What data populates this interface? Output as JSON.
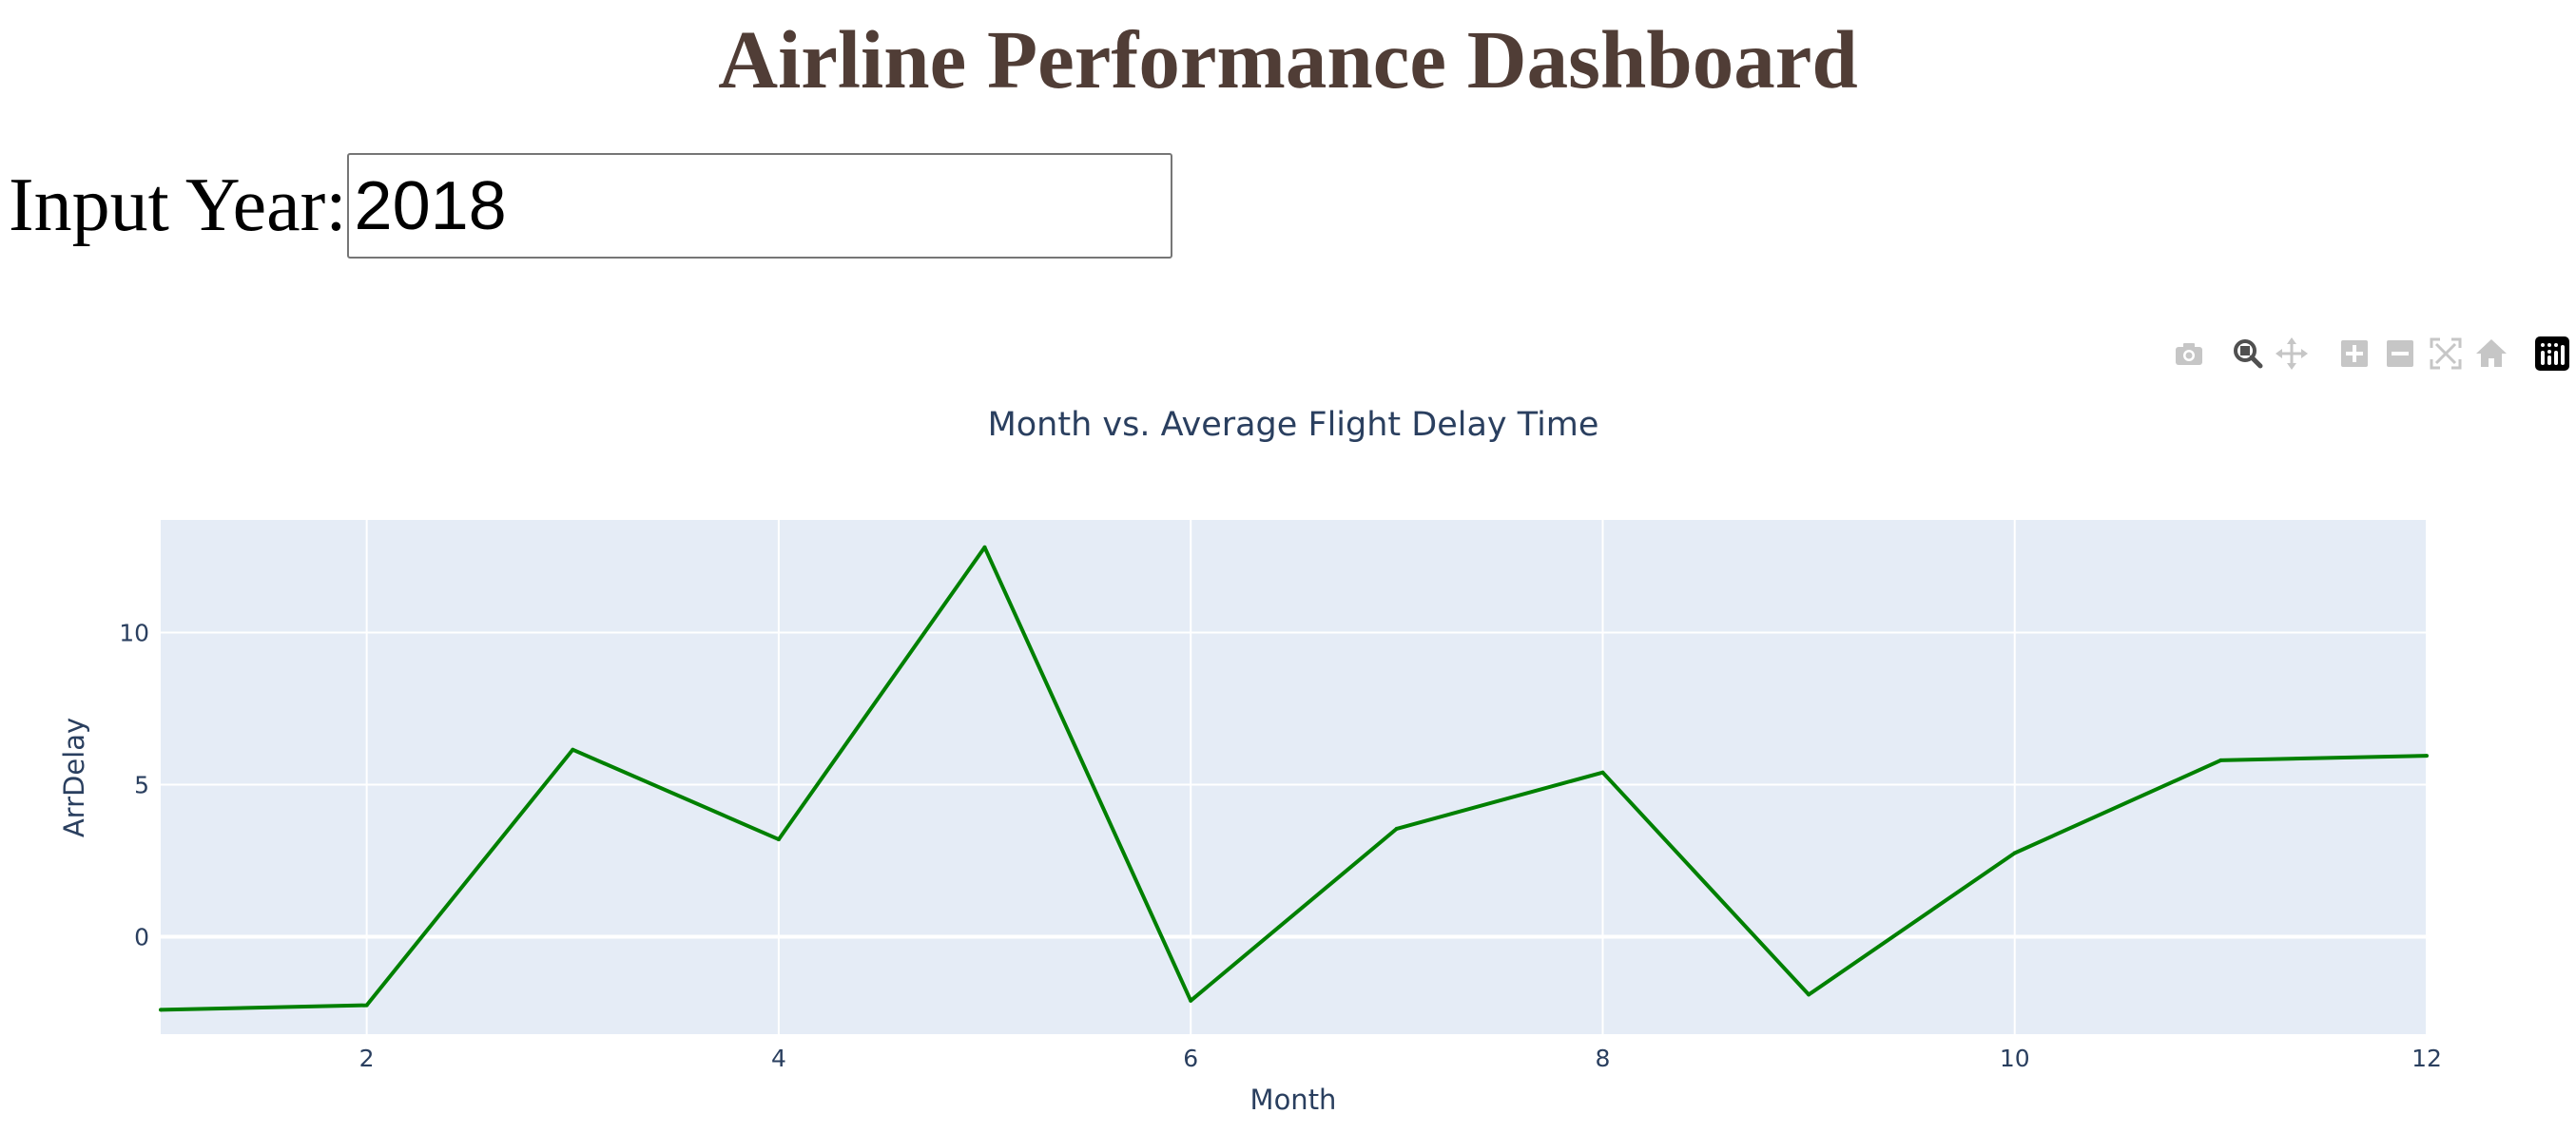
{
  "header": {
    "title": "Airline Performance Dashboard"
  },
  "year_input": {
    "label": "Input Year:",
    "value": "2018"
  },
  "modebar": {
    "icons": [
      "camera-icon",
      "zoom-icon",
      "pan-icon",
      "zoom-in-icon",
      "zoom-out-icon",
      "autoscale-icon",
      "reset-axes-icon",
      "plotly-logo-icon"
    ],
    "active": "zoom-icon"
  },
  "colors": {
    "title": "#503D36",
    "line": "#008000",
    "plot_bg": "#E5ECF6",
    "axis_text": "#2A3F5F",
    "grid": "#FFFFFF"
  },
  "chart_data": {
    "type": "line",
    "title": "Month vs. Average Flight Delay Time",
    "xlabel": "Month",
    "ylabel": "ArrDelay",
    "x": [
      1,
      2,
      3,
      4,
      5,
      6,
      7,
      8,
      9,
      10,
      11,
      12
    ],
    "series": [
      {
        "values": [
          -2.4,
          -2.25,
          6.15,
          3.2,
          12.8,
          -2.1,
          3.55,
          5.4,
          -1.9,
          2.75,
          5.8,
          5.95
        ]
      }
    ],
    "xlim": [
      1,
      12
    ],
    "ylim": [
      -3.2,
      13.7
    ],
    "xticks": [
      2,
      4,
      6,
      8,
      10,
      12
    ],
    "xtick_labels": [
      "2",
      "4",
      "6",
      "8",
      "10",
      "12"
    ],
    "yticks": [
      0,
      5,
      10
    ],
    "ytick_labels": [
      "0",
      "5",
      "10"
    ],
    "grid": true,
    "legend": "none"
  }
}
